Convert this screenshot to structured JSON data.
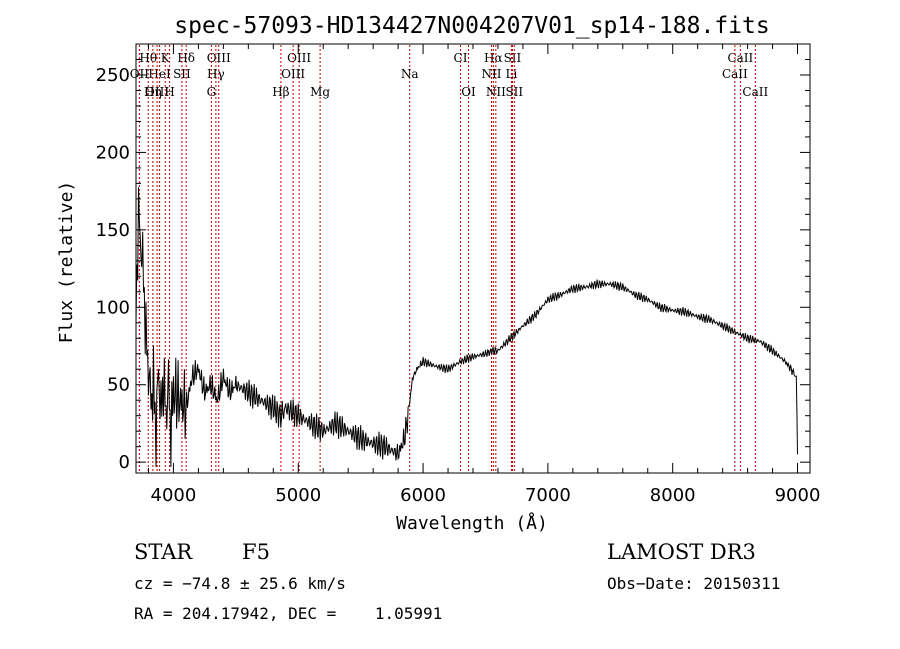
{
  "chart_data": {
    "type": "line",
    "title": "spec-57093-HD134427N004207V01_sp14-188.fits",
    "xlabel": "Wavelength (Å)",
    "ylabel": "Flux (relative)",
    "xlim": [
      3700,
      9100
    ],
    "ylim": [
      -7,
      270
    ],
    "xticks": [
      4000,
      5000,
      6000,
      7000,
      8000,
      9000
    ],
    "yticks": [
      0,
      50,
      100,
      150,
      200,
      250
    ],
    "series": [
      {
        "name": "spectrum",
        "x": [
          3700,
          3720,
          3740,
          3760,
          3780,
          3800,
          3820,
          3840,
          3860,
          3880,
          3900,
          3920,
          3940,
          3960,
          3980,
          4000,
          4050,
          4100,
          4150,
          4200,
          4250,
          4300,
          4350,
          4400,
          4450,
          4500,
          4600,
          4700,
          4800,
          4860,
          4900,
          5000,
          5100,
          5200,
          5300,
          5400,
          5500,
          5600,
          5700,
          5800,
          5850,
          5880,
          5900,
          5920,
          5950,
          6000,
          6100,
          6200,
          6300,
          6400,
          6500,
          6560,
          6600,
          6700,
          6800,
          6900,
          7000,
          7100,
          7200,
          7300,
          7400,
          7500,
          7600,
          7700,
          7800,
          7900,
          8000,
          8100,
          8200,
          8300,
          8400,
          8500,
          8600,
          8700,
          8800,
          8900,
          8950,
          8990,
          9000
        ],
        "y": [
          100,
          160,
          140,
          120,
          80,
          60,
          40,
          50,
          20,
          60,
          30,
          55,
          30,
          50,
          20,
          45,
          40,
          35,
          55,
          60,
          45,
          50,
          40,
          55,
          45,
          50,
          45,
          40,
          35,
          30,
          35,
          30,
          25,
          20,
          25,
          20,
          15,
          12,
          10,
          5,
          15,
          30,
          45,
          55,
          60,
          65,
          62,
          60,
          65,
          68,
          70,
          72,
          72,
          80,
          88,
          95,
          105,
          108,
          112,
          113,
          115,
          115,
          113,
          108,
          105,
          100,
          98,
          97,
          94,
          92,
          88,
          84,
          80,
          78,
          72,
          65,
          60,
          55,
          5
        ]
      }
    ],
    "line_markers": [
      {
        "label": "Hθ",
        "x": 3798,
        "row": 1
      },
      {
        "label": "K",
        "x": 3934,
        "row": 1
      },
      {
        "label": "Hδ",
        "x": 4102,
        "row": 1
      },
      {
        "label": "OIII",
        "x": 4363,
        "row": 1
      },
      {
        "label": "OIII",
        "x": 5007,
        "row": 1
      },
      {
        "label": "CI",
        "x": 6300,
        "row": 1
      },
      {
        "label": "Hα",
        "x": 6563,
        "row": 1
      },
      {
        "label": "SII",
        "x": 6716,
        "row": 1
      },
      {
        "label": "CaII",
        "x": 8542,
        "row": 1
      },
      {
        "label": "OII",
        "x": 3727,
        "row": 2
      },
      {
        "label": "HeI",
        "x": 3889,
        "row": 2
      },
      {
        "label": "SII",
        "x": 4068,
        "row": 2
      },
      {
        "label": "Hγ",
        "x": 4340,
        "row": 2
      },
      {
        "label": "OIII",
        "x": 4959,
        "row": 2
      },
      {
        "label": "Na",
        "x": 5893,
        "row": 2
      },
      {
        "label": "NII",
        "x": 6548,
        "row": 2
      },
      {
        "label": "Li",
        "x": 6708,
        "row": 2
      },
      {
        "label": "CaII",
        "x": 8498,
        "row": 2
      },
      {
        "label": "OIII",
        "x": 3869,
        "row": 3
      },
      {
        "label": "Hη",
        "x": 3835,
        "row": 3
      },
      {
        "label": "H",
        "x": 3969,
        "row": 3
      },
      {
        "label": "G",
        "x": 4304,
        "row": 3
      },
      {
        "label": "Hβ",
        "x": 4861,
        "row": 3
      },
      {
        "label": "Mg",
        "x": 5175,
        "row": 3
      },
      {
        "label": "OI",
        "x": 6364,
        "row": 3
      },
      {
        "label": "NII",
        "x": 6583,
        "row": 3
      },
      {
        "label": "SII",
        "x": 6731,
        "row": 3
      },
      {
        "label": "CaII",
        "x": 8662,
        "row": 3
      }
    ],
    "marker_color": "#c00000"
  },
  "info": {
    "class": "STAR",
    "subclass": "F5",
    "survey": "LAMOST DR3",
    "cz": "cz = −74.8 ± 25.6 km/s",
    "obs_date": "Obs−Date: 20150311",
    "radec": "RA = 204.17942, DEC =    1.05991"
  }
}
